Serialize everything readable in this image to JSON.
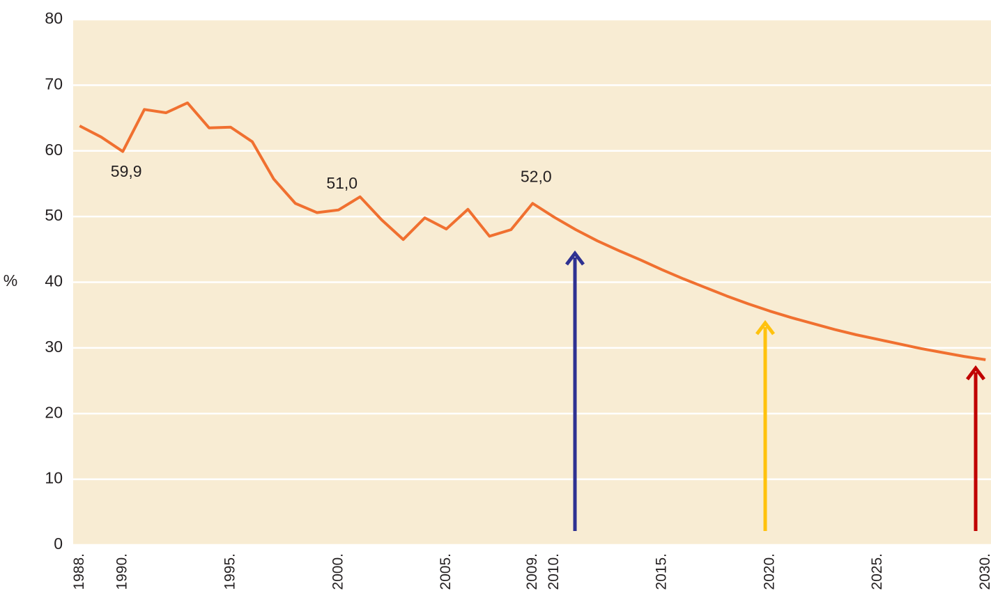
{
  "chart_data": {
    "type": "line",
    "y_label": "%",
    "x": [
      1988,
      1989,
      1990,
      1991,
      1992,
      1993,
      1994,
      1995,
      1996,
      1997,
      1998,
      1999,
      2000,
      2001,
      2002,
      2003,
      2004,
      2005,
      2006,
      2007,
      2008,
      2009,
      2010,
      2011,
      2012,
      2013,
      2014,
      2015,
      2016,
      2017,
      2018,
      2019,
      2020,
      2021,
      2022,
      2023,
      2024,
      2025,
      2026,
      2027,
      2028,
      2029,
      2030
    ],
    "series": [
      {
        "color": "#f07030",
        "values": [
          63.8,
          62.1,
          59.9,
          66.3,
          65.8,
          67.3,
          63.5,
          63.6,
          61.4,
          55.7,
          52.0,
          50.6,
          51.0,
          53.0,
          49.5,
          46.5,
          49.8,
          48.1,
          51.1,
          47.0,
          48.0,
          52.0,
          49.9,
          48.0,
          46.3,
          44.8,
          43.4,
          41.9,
          40.5,
          39.2,
          37.9,
          36.7,
          35.6,
          34.6,
          33.7,
          32.8,
          32.0,
          31.3,
          30.6,
          29.9,
          29.3,
          28.7,
          28.2
        ],
        "value_labels": [
          null,
          null,
          "59,9",
          null,
          null,
          null,
          null,
          null,
          null,
          null,
          null,
          null,
          "51,0",
          null,
          null,
          null,
          null,
          null,
          null,
          null,
          null,
          "52,0",
          null,
          null,
          null,
          null,
          null,
          null,
          null,
          null,
          null,
          null,
          null,
          null,
          null,
          null,
          null,
          null,
          null,
          null,
          null,
          null,
          null
        ]
      }
    ],
    "xlim": [
      1987.7,
      2030.25
    ],
    "xticks": [
      {
        "value": 1988,
        "label": "1988."
      },
      {
        "value": 1990,
        "label": "1990."
      },
      {
        "value": 1995,
        "label": "1995."
      },
      {
        "value": 2000,
        "label": "2000."
      },
      {
        "value": 2005,
        "label": "2005."
      },
      {
        "value": 2009,
        "label": "2009."
      },
      {
        "value": 2010,
        "label": "2010."
      },
      {
        "value": 2015,
        "label": "2015."
      },
      {
        "value": 2020,
        "label": "2020."
      },
      {
        "value": 2025,
        "label": "2025."
      },
      {
        "value": 2030,
        "label": "2030."
      }
    ],
    "ylim": [
      0,
      80
    ],
    "yticks": [
      0,
      10,
      20,
      30,
      40,
      50,
      60,
      70,
      80
    ],
    "grid": true
  }
}
